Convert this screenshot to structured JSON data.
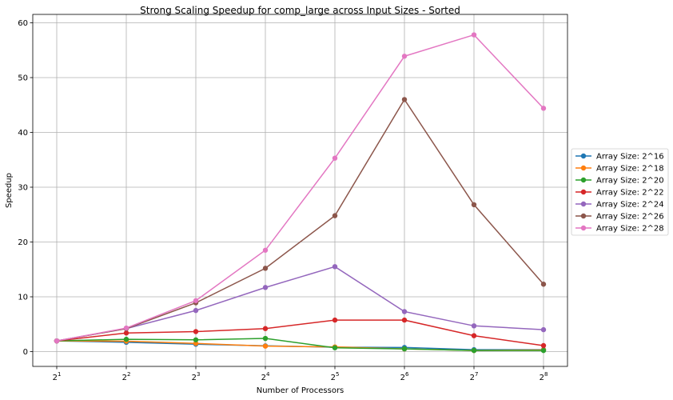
{
  "chart_data": {
    "type": "line",
    "title": "Strong Scaling Speedup for comp_large across Input Sizes - Sorted",
    "xlabel": "Number of Processors",
    "ylabel": "Speedup",
    "x": [
      2,
      4,
      8,
      16,
      32,
      64,
      128,
      256
    ],
    "x_tick_labels": [
      {
        "base": "2",
        "exp": "1"
      },
      {
        "base": "2",
        "exp": "2"
      },
      {
        "base": "2",
        "exp": "3"
      },
      {
        "base": "2",
        "exp": "4"
      },
      {
        "base": "2",
        "exp": "5"
      },
      {
        "base": "2",
        "exp": "6"
      },
      {
        "base": "2",
        "exp": "7"
      },
      {
        "base": "2",
        "exp": "8"
      }
    ],
    "x_scale": "log2",
    "ylim": [
      -2.9,
      61
    ],
    "y_ticks": [
      0,
      10,
      20,
      30,
      40,
      50,
      60
    ],
    "grid": true,
    "legend_position": "outside-right",
    "series": [
      {
        "name": "Array Size: 2^16",
        "color": "#1f77b4",
        "values": [
          1.95,
          1.7,
          1.35,
          1.05,
          0.8,
          0.75,
          0.35,
          0.35
        ]
      },
      {
        "name": "Array Size: 2^18",
        "color": "#ff7f0e",
        "values": [
          1.95,
          1.9,
          1.5,
          1.0,
          0.85,
          0.5,
          0.2,
          0.3
        ]
      },
      {
        "name": "Array Size: 2^20",
        "color": "#2ca02c",
        "values": [
          1.95,
          2.25,
          2.15,
          2.4,
          0.7,
          0.5,
          0.2,
          0.2
        ]
      },
      {
        "name": "Array Size: 2^22",
        "color": "#d62728",
        "values": [
          1.95,
          3.4,
          3.65,
          4.2,
          5.75,
          5.75,
          2.9,
          1.1
        ]
      },
      {
        "name": "Array Size: 2^24",
        "color": "#9467bd",
        "values": [
          1.95,
          4.2,
          7.5,
          11.7,
          15.5,
          7.3,
          4.7,
          4.0
        ]
      },
      {
        "name": "Array Size: 2^26",
        "color": "#8c564b",
        "values": [
          1.95,
          4.2,
          8.9,
          15.2,
          24.8,
          46.0,
          26.8,
          12.3
        ]
      },
      {
        "name": "Array Size: 2^28",
        "color": "#e377c2",
        "values": [
          1.95,
          4.3,
          9.3,
          18.5,
          35.3,
          53.9,
          57.8,
          44.4
        ]
      }
    ]
  }
}
